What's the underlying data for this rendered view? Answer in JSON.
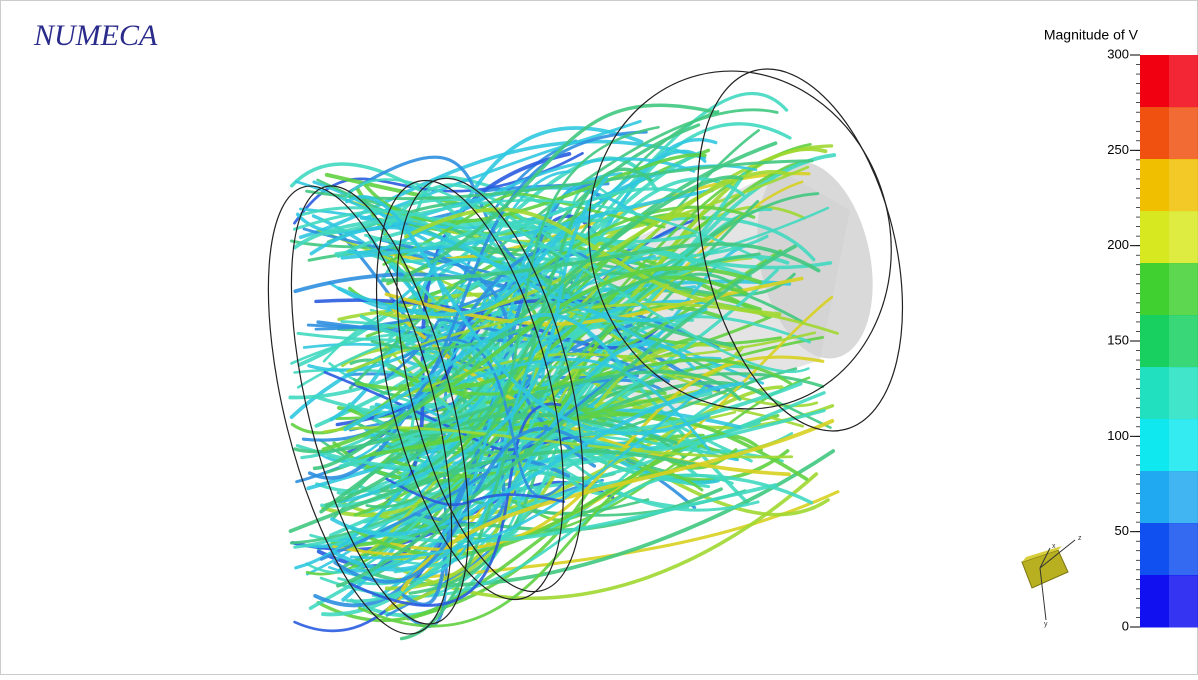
{
  "logo": "NUMECA",
  "colorbar": {
    "title": "Magnitude of V",
    "lim": [
      0,
      300
    ],
    "ticks": [
      0,
      50,
      100,
      150,
      200,
      250,
      300
    ]
  },
  "triad": {
    "labels": [
      "x",
      "y",
      "z"
    ]
  }
}
